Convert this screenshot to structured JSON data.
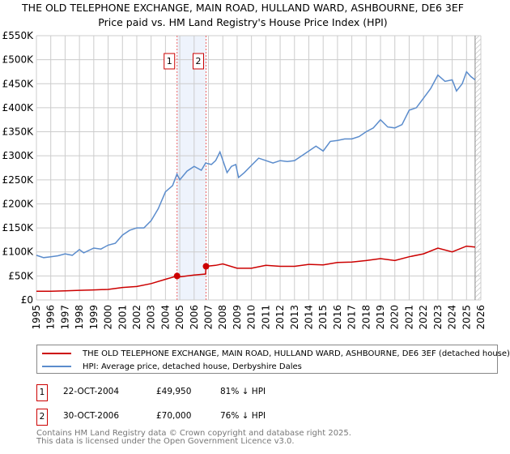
{
  "title_line1": "THE OLD TELEPHONE EXCHANGE, MAIN ROAD, HULLAND WARD, ASHBOURNE, DE6 3EF",
  "title_line2": "Price paid vs. HM Land Registry's House Price Index (HPI)",
  "legend": {
    "red": "THE OLD TELEPHONE EXCHANGE, MAIN ROAD, HULLAND WARD, ASHBOURNE, DE6 3EF (detached house)",
    "blue": "HPI: Average price, detached house, Derbyshire Dales"
  },
  "sales": [
    {
      "num": "1",
      "date": "22-OCT-2004",
      "price": "£49,950",
      "hpi": "81% ↓ HPI"
    },
    {
      "num": "2",
      "date": "30-OCT-2006",
      "price": "£70,000",
      "hpi": "76% ↓ HPI"
    }
  ],
  "footer": {
    "line1": "Contains HM Land Registry data © Crown copyright and database right 2025.",
    "line2": "This data is licensed under the Open Government Licence v3.0."
  },
  "chart_data": {
    "type": "line",
    "xlim": [
      1995,
      2026
    ],
    "ylim": [
      0,
      550000
    ],
    "yticks": [
      0,
      50000,
      100000,
      150000,
      200000,
      250000,
      300000,
      350000,
      400000,
      450000,
      500000,
      550000
    ],
    "ytick_labels": [
      "£0",
      "£50K",
      "£100K",
      "£150K",
      "£200K",
      "£250K",
      "£300K",
      "£350K",
      "£400K",
      "£450K",
      "£500K",
      "£550K"
    ],
    "xticks": [
      "1995",
      "1996",
      "1997",
      "1998",
      "1999",
      "2000",
      "2001",
      "2002",
      "2003",
      "2004",
      "2005",
      "2006",
      "2007",
      "2008",
      "2009",
      "2010",
      "2011",
      "2012",
      "2013",
      "2014",
      "2015",
      "2016",
      "2017",
      "2018",
      "2019",
      "2020",
      "2021",
      "2022",
      "2023",
      "2024",
      "2025",
      "2026"
    ],
    "colors": {
      "red": "#cc0000",
      "blue": "#5b8ccc",
      "shade": "#eef3fc"
    },
    "shaded_range": [
      2004.81,
      2006.83
    ],
    "forecast_from": 2025.6,
    "series": [
      {
        "name": "HPI",
        "color": "#5b8ccc",
        "x": [
          1995,
          1995.5,
          1996,
          1996.5,
          1997,
          1997.5,
          1998,
          1998.3,
          1999,
          1999.5,
          2000,
          2000.5,
          2001,
          2001.5,
          2002,
          2002.5,
          2003,
          2003.5,
          2004,
          2004.5,
          2004.8,
          2005,
          2005.5,
          2006,
          2006.5,
          2006.8,
          2007.2,
          2007.5,
          2007.8,
          2008.3,
          2008.6,
          2008.9,
          2009.1,
          2009.5,
          2010,
          2010.5,
          2011,
          2011.5,
          2012,
          2012.5,
          2013,
          2013.5,
          2014,
          2014.5,
          2015,
          2015.5,
          2016,
          2016.5,
          2017,
          2017.5,
          2018,
          2018.5,
          2019,
          2019.5,
          2020,
          2020.5,
          2021,
          2021.5,
          2022,
          2022.5,
          2023,
          2023.5,
          2024,
          2024.3,
          2024.7,
          2025,
          2025.3,
          2025.6
        ],
        "values": [
          93000,
          88000,
          90000,
          92000,
          96000,
          93000,
          105000,
          98000,
          108000,
          106000,
          114000,
          118000,
          135000,
          145000,
          150000,
          150000,
          165000,
          190000,
          225000,
          238000,
          262000,
          250000,
          268000,
          278000,
          270000,
          285000,
          282000,
          290000,
          308000,
          265000,
          278000,
          282000,
          255000,
          265000,
          280000,
          295000,
          290000,
          285000,
          290000,
          288000,
          290000,
          300000,
          310000,
          320000,
          310000,
          330000,
          332000,
          335000,
          335000,
          340000,
          350000,
          358000,
          375000,
          360000,
          358000,
          365000,
          395000,
          400000,
          420000,
          440000,
          468000,
          455000,
          458000,
          435000,
          450000,
          475000,
          465000,
          458000
        ]
      },
      {
        "name": "Price paid",
        "color": "#cc0000",
        "x": [
          1995,
          1996,
          1997,
          1998,
          1999,
          2000,
          2001,
          2002,
          2003,
          2004,
          2004.81,
          2005,
          2006,
          2006.8,
          2006.83,
          2007.5,
          2008,
          2009,
          2010,
          2011,
          2012,
          2013,
          2014,
          2015,
          2016,
          2017,
          2018,
          2019,
          2020,
          2021,
          2022,
          2023,
          2024,
          2025,
          2025.6
        ],
        "values": [
          18000,
          18000,
          19000,
          20000,
          21000,
          22000,
          26000,
          28000,
          34000,
          43000,
          49950,
          48000,
          52000,
          54000,
          70000,
          72000,
          75000,
          66000,
          66000,
          72000,
          70000,
          70000,
          74000,
          73000,
          78000,
          79000,
          82000,
          86000,
          82000,
          90000,
          96000,
          108000,
          100000,
          112000,
          110000
        ]
      }
    ]
  }
}
